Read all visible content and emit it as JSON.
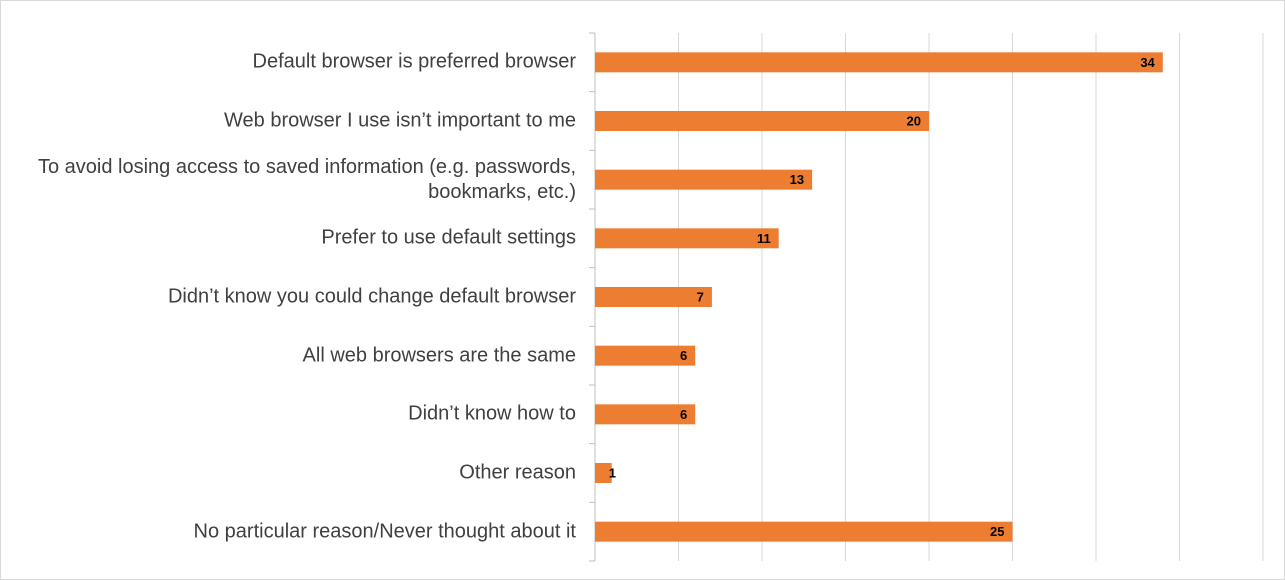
{
  "chart_data": {
    "type": "bar",
    "orientation": "horizontal",
    "categories": [
      "Default browser is preferred browser",
      "Web browser I use isn’t important to me",
      "To avoid losing access to saved information (e.g. passwords, bookmarks, etc.)",
      "Prefer to use default settings",
      "Didn’t know you could change default browser",
      "All web browsers are the same",
      "Didn’t know how to",
      "Other reason",
      "No particular reason/Never thought about it"
    ],
    "values": [
      34,
      20,
      13,
      11,
      7,
      6,
      6,
      1,
      25
    ],
    "color": "#ed7d31",
    "xlim": [
      0,
      40
    ],
    "xticks": [
      0,
      5,
      10,
      15,
      20,
      25,
      30,
      35,
      40
    ],
    "grid": true
  }
}
